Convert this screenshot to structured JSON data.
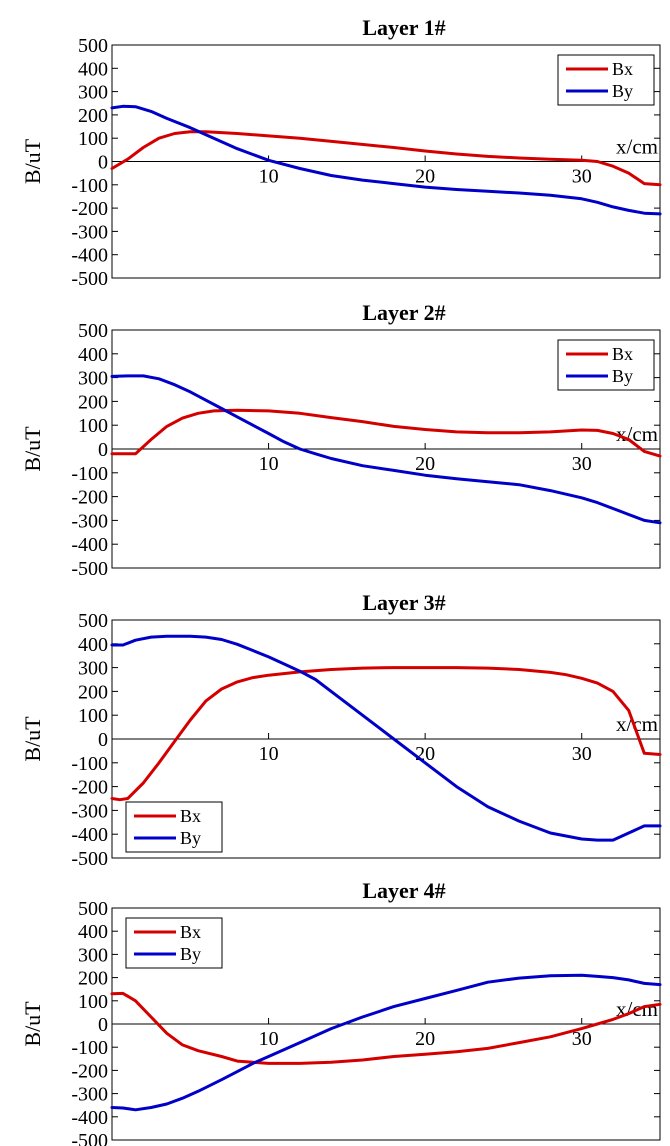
{
  "chart_data": [
    {
      "type": "line",
      "title": "Layer 1#",
      "xlabel": "x/cm",
      "ylabel": "B/uT",
      "xlim": [
        0,
        35
      ],
      "ylim": [
        -500,
        500
      ],
      "yticks": [
        500,
        400,
        300,
        200,
        100,
        0,
        -100,
        -200,
        -300,
        -400,
        -500
      ],
      "xticks": [
        10,
        20,
        30
      ],
      "legend": "top-right",
      "series": [
        {
          "name": "Bx",
          "color": "#d40000",
          "x": [
            0,
            1,
            2,
            3,
            4,
            5,
            6,
            8,
            10,
            12,
            15,
            18,
            20,
            22,
            24,
            26,
            28,
            30,
            31,
            32,
            33,
            34,
            35
          ],
          "y": [
            -30,
            10,
            60,
            100,
            120,
            128,
            128,
            120,
            110,
            100,
            80,
            60,
            45,
            32,
            22,
            15,
            10,
            5,
            0,
            -20,
            -50,
            -95,
            -100
          ]
        },
        {
          "name": "By",
          "color": "#0000c8",
          "x": [
            0,
            0.7,
            1.5,
            2.5,
            3.5,
            5,
            6,
            7,
            8,
            9,
            10,
            12,
            14,
            16,
            18,
            20,
            22,
            24,
            26,
            28,
            30,
            31,
            32,
            33,
            34,
            35
          ],
          "y": [
            230,
            237,
            235,
            215,
            185,
            145,
            115,
            85,
            55,
            30,
            5,
            -30,
            -60,
            -80,
            -95,
            -110,
            -120,
            -128,
            -135,
            -145,
            -160,
            -175,
            -195,
            -210,
            -222,
            -225
          ]
        }
      ]
    },
    {
      "type": "line",
      "title": "Layer 2#",
      "xlabel": "x/cm",
      "ylabel": "B/uT",
      "xlim": [
        0,
        35
      ],
      "ylim": [
        -500,
        500
      ],
      "yticks": [
        500,
        400,
        300,
        200,
        100,
        0,
        -100,
        -200,
        -300,
        -400,
        -500
      ],
      "xticks": [
        10,
        20,
        30
      ],
      "legend": "top-right",
      "series": [
        {
          "name": "Bx",
          "color": "#d40000",
          "x": [
            0,
            1,
            1.5,
            2.5,
            3.5,
            4.5,
            5.5,
            6.5,
            8,
            10,
            12,
            14,
            16,
            18,
            20,
            22,
            24,
            26,
            28,
            30,
            31,
            32,
            33,
            34,
            35
          ],
          "y": [
            -20,
            -20,
            -20,
            40,
            95,
            130,
            150,
            160,
            163,
            160,
            150,
            132,
            115,
            95,
            82,
            72,
            68,
            68,
            72,
            80,
            78,
            65,
            40,
            -10,
            -30
          ]
        },
        {
          "name": "By",
          "color": "#0000c8",
          "x": [
            0,
            1,
            2,
            3,
            4,
            5,
            6,
            7,
            8,
            9,
            10,
            11,
            12,
            13,
            14,
            16,
            18,
            20,
            22,
            24,
            26,
            28,
            30,
            31,
            32,
            33,
            34,
            35
          ],
          "y": [
            305,
            307,
            307,
            295,
            270,
            240,
            205,
            170,
            135,
            100,
            65,
            30,
            0,
            -20,
            -40,
            -70,
            -90,
            -110,
            -125,
            -138,
            -150,
            -175,
            -205,
            -225,
            -250,
            -275,
            -300,
            -310
          ]
        }
      ]
    },
    {
      "type": "line",
      "title": "Layer 3#",
      "xlabel": "x/cm",
      "ylabel": "B/uT",
      "xlim": [
        0,
        35
      ],
      "ylim": [
        -500,
        500
      ],
      "yticks": [
        500,
        400,
        300,
        200,
        100,
        0,
        -100,
        -200,
        -300,
        -400,
        -500
      ],
      "xticks": [
        10,
        20,
        30
      ],
      "legend": "bottom-left",
      "series": [
        {
          "name": "Bx",
          "color": "#d40000",
          "x": [
            0,
            0.5,
            1,
            2,
            3,
            4,
            5,
            6,
            7,
            8,
            9,
            10,
            12,
            14,
            16,
            18,
            20,
            22,
            24,
            26,
            28,
            29,
            30,
            31,
            32,
            33,
            33.5,
            34,
            35
          ],
          "y": [
            -250,
            -255,
            -250,
            -185,
            -100,
            -10,
            80,
            160,
            210,
            240,
            258,
            268,
            282,
            292,
            298,
            300,
            300,
            300,
            298,
            292,
            280,
            270,
            255,
            235,
            200,
            120,
            30,
            -60,
            -65
          ]
        },
        {
          "name": "By",
          "color": "#0000c8",
          "x": [
            0,
            0.7,
            1.5,
            2.5,
            3.5,
            5,
            6,
            7,
            8,
            9,
            10,
            11,
            12,
            13,
            14,
            16,
            18,
            20,
            22,
            24,
            26,
            28,
            30,
            31,
            32,
            33,
            34,
            35
          ],
          "y": [
            395,
            395,
            415,
            428,
            432,
            432,
            428,
            418,
            398,
            372,
            345,
            315,
            285,
            250,
            200,
            100,
            0,
            -100,
            -200,
            -285,
            -345,
            -395,
            -420,
            -425,
            -425,
            -395,
            -365,
            -365
          ]
        }
      ]
    },
    {
      "type": "line",
      "title": "Layer 4#",
      "xlabel": "x/cm",
      "ylabel": "B/uT",
      "xlim": [
        0,
        35
      ],
      "ylim": [
        -500,
        500
      ],
      "yticks": [
        500,
        400,
        300,
        200,
        100,
        0,
        -100,
        -200,
        -300,
        -400,
        -500
      ],
      "xticks": [
        10,
        20,
        30
      ],
      "legend": "top-left",
      "series": [
        {
          "name": "Bx",
          "color": "#d40000",
          "x": [
            0,
            0.7,
            1.5,
            2.5,
            3.5,
            4.5,
            5.5,
            7,
            8,
            10,
            12,
            14,
            16,
            18,
            20,
            22,
            24,
            26,
            28,
            30,
            31,
            32,
            33,
            34,
            35
          ],
          "y": [
            130,
            132,
            100,
            30,
            -40,
            -90,
            -115,
            -140,
            -160,
            -170,
            -170,
            -165,
            -155,
            -140,
            -130,
            -120,
            -105,
            -80,
            -55,
            -20,
            0,
            20,
            45,
            75,
            85
          ]
        },
        {
          "name": "By",
          "color": "#0000c8",
          "x": [
            0,
            0.7,
            1.5,
            2.5,
            3.5,
            4.5,
            5.5,
            7,
            8,
            9,
            10,
            12,
            14,
            16,
            18,
            20,
            22,
            24,
            26,
            28,
            30,
            31,
            32,
            33,
            34,
            35
          ],
          "y": [
            -360,
            -362,
            -370,
            -360,
            -345,
            -320,
            -290,
            -240,
            -205,
            -170,
            -140,
            -80,
            -20,
            30,
            75,
            110,
            145,
            180,
            198,
            208,
            210,
            205,
            200,
            190,
            175,
            170
          ]
        }
      ]
    }
  ]
}
